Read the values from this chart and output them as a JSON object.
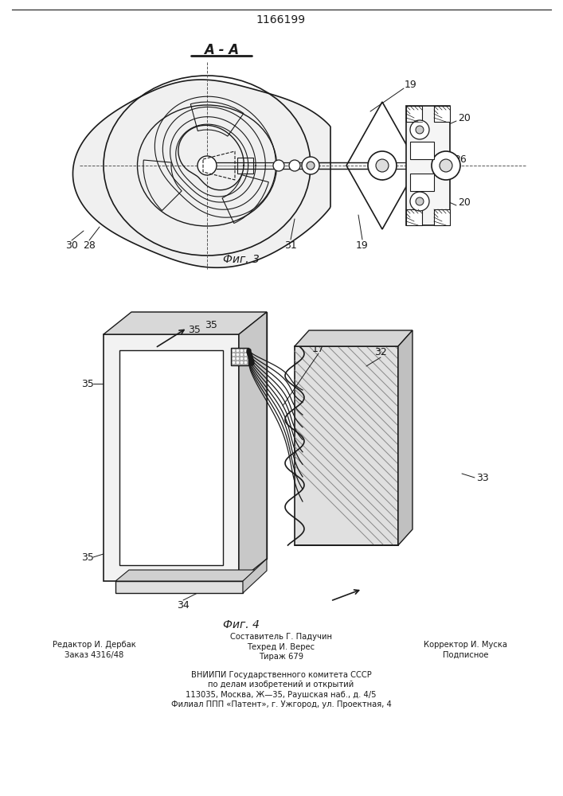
{
  "title": "1166199",
  "fig3_label": "Фиг. 3",
  "fig4_label": "Фиг. 4",
  "section_label": "A - A",
  "footer_left_line1": "Редактор И. Дербак",
  "footer_left_line2": "Заказ 4316/48",
  "footer_center_line1": "Составитель Г. Падучин",
  "footer_center_line2": "Техред И. Верес",
  "footer_center_line3": "Тираж 679",
  "footer_right_line1": "Корректор И. Муска",
  "footer_right_line2": "Подписное",
  "footer_bottom1": "ВНИИПИ Государственного комитета СССР",
  "footer_bottom2": "по делам изобретений и открытий",
  "footer_bottom3": "113035, Москва, Ж—35, Раушская наб., д. 4/5",
  "footer_bottom4": "Филиал ППП «Патент», г. Ужгород, ул. Проектная, 4",
  "bg_color": "#ffffff",
  "line_color": "#1a1a1a"
}
